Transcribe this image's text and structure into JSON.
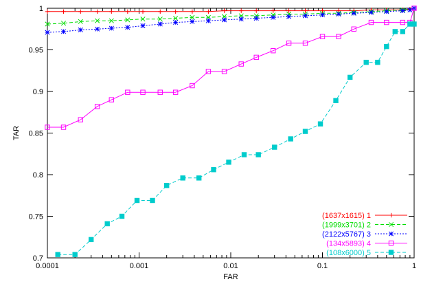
{
  "chart_data": {
    "type": "line",
    "title": "",
    "xlabel": "FAR",
    "ylabel": "TAR",
    "xscale": "log",
    "xlim": [
      0.0001,
      1
    ],
    "ylim": [
      0.7,
      1.0
    ],
    "grid": false,
    "legend_position": "bottom-right",
    "x_ticks": [
      {
        "value": 0.0001,
        "label": "0.0001"
      },
      {
        "value": 0.001,
        "label": "0.001"
      },
      {
        "value": 0.01,
        "label": "0.01"
      },
      {
        "value": 0.1,
        "label": "0.1"
      },
      {
        "value": 1,
        "label": "1"
      }
    ],
    "y_ticks": [
      {
        "value": 0.7,
        "label": "0.7"
      },
      {
        "value": 0.75,
        "label": "0.75"
      },
      {
        "value": 0.8,
        "label": "0.8"
      },
      {
        "value": 0.85,
        "label": "0.85"
      },
      {
        "value": 0.9,
        "label": "0.9"
      },
      {
        "value": 0.95,
        "label": "0.95"
      },
      {
        "value": 1.0,
        "label": "1"
      }
    ],
    "series": [
      {
        "name": "(1637x1615) 1",
        "color": "#ff0000",
        "marker": "plus",
        "dash": "solid",
        "x": [
          0.0001,
          0.00015,
          0.00023,
          0.00035,
          0.0005,
          0.00075,
          0.0011,
          0.0017,
          0.0025,
          0.0038,
          0.0057,
          0.0085,
          0.013,
          0.019,
          0.029,
          0.043,
          0.065,
          0.1,
          0.15,
          0.22,
          0.34,
          0.5,
          0.75,
          0.9,
          1.0
        ],
        "y": [
          0.996,
          0.996,
          0.996,
          0.996,
          0.996,
          0.996,
          0.996,
          0.996,
          0.996,
          0.996,
          0.996,
          0.997,
          0.997,
          0.997,
          0.997,
          0.997,
          0.997,
          0.997,
          0.997,
          0.997,
          0.998,
          0.998,
          0.998,
          0.999,
          1.0
        ]
      },
      {
        "name": "(1999x3701) 2",
        "color": "#00dd00",
        "marker": "cross",
        "dash": "dashed",
        "x": [
          0.0001,
          0.00015,
          0.00023,
          0.00035,
          0.0005,
          0.00075,
          0.0011,
          0.0017,
          0.0025,
          0.0038,
          0.0057,
          0.0085,
          0.013,
          0.019,
          0.029,
          0.043,
          0.065,
          0.1,
          0.15,
          0.22,
          0.34,
          0.5,
          0.75,
          1.0
        ],
        "y": [
          0.981,
          0.982,
          0.984,
          0.985,
          0.985,
          0.986,
          0.987,
          0.987,
          0.988,
          0.989,
          0.989,
          0.99,
          0.991,
          0.991,
          0.992,
          0.993,
          0.993,
          0.994,
          0.994,
          0.995,
          0.996,
          0.997,
          0.998,
          1.0
        ]
      },
      {
        "name": "(2122x5767) 3",
        "color": "#0000ff",
        "marker": "star",
        "dash": "dotted",
        "x": [
          0.0001,
          0.00015,
          0.00023,
          0.00035,
          0.0005,
          0.00075,
          0.0011,
          0.0017,
          0.0025,
          0.0038,
          0.0057,
          0.0085,
          0.013,
          0.019,
          0.029,
          0.043,
          0.065,
          0.1,
          0.15,
          0.22,
          0.34,
          0.5,
          0.75,
          0.9,
          1.0
        ],
        "y": [
          0.971,
          0.972,
          0.974,
          0.975,
          0.976,
          0.977,
          0.979,
          0.981,
          0.983,
          0.984,
          0.985,
          0.986,
          0.987,
          0.988,
          0.989,
          0.99,
          0.991,
          0.992,
          0.993,
          0.994,
          0.995,
          0.996,
          0.997,
          0.998,
          1.0
        ]
      },
      {
        "name": "(134x5893) 4",
        "color": "#ff00ff",
        "marker": "square-open",
        "dash": "solid",
        "x": [
          0.0001,
          0.00015,
          0.00023,
          0.00035,
          0.0005,
          0.00075,
          0.0011,
          0.0017,
          0.0025,
          0.0038,
          0.0057,
          0.0085,
          0.013,
          0.019,
          0.029,
          0.043,
          0.065,
          0.1,
          0.15,
          0.22,
          0.34,
          0.5,
          0.75,
          0.9,
          1.0
        ],
        "y": [
          0.857,
          0.857,
          0.866,
          0.882,
          0.89,
          0.899,
          0.899,
          0.899,
          0.899,
          0.907,
          0.924,
          0.924,
          0.933,
          0.941,
          0.949,
          0.958,
          0.958,
          0.966,
          0.966,
          0.975,
          0.983,
          0.983,
          0.983,
          0.983,
          1.0
        ]
      },
      {
        "name": "(108x6000) 5",
        "color": "#00cccc",
        "marker": "square-filled",
        "dash": "dashed",
        "x": [
          0.00013,
          0.0002,
          0.0003,
          0.00045,
          0.00065,
          0.00095,
          0.0014,
          0.002,
          0.003,
          0.0045,
          0.0065,
          0.0095,
          0.014,
          0.02,
          0.03,
          0.045,
          0.065,
          0.095,
          0.14,
          0.2,
          0.3,
          0.4,
          0.5,
          0.62,
          0.75,
          0.9,
          1.0
        ],
        "y": [
          0.704,
          0.704,
          0.722,
          0.741,
          0.75,
          0.769,
          0.769,
          0.787,
          0.796,
          0.796,
          0.806,
          0.815,
          0.824,
          0.824,
          0.833,
          0.843,
          0.852,
          0.861,
          0.889,
          0.917,
          0.935,
          0.935,
          0.954,
          0.972,
          0.972,
          0.981,
          0.981
        ]
      }
    ]
  }
}
